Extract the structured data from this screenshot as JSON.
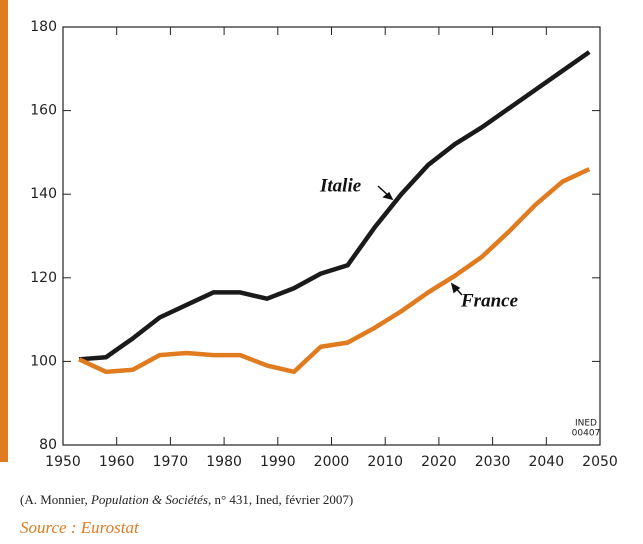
{
  "chart_data": {
    "type": "line",
    "x": [
      1953,
      1958,
      1963,
      1968,
      1973,
      1978,
      1983,
      1988,
      1993,
      1998,
      2003,
      2008,
      2013,
      2018,
      2023,
      2028,
      2033,
      2038,
      2043,
      2048
    ],
    "series": [
      {
        "name": "Italie",
        "color": "#1a1a1a",
        "values": [
          100.5,
          101,
          105.5,
          110.5,
          113.5,
          116.5,
          116.5,
          115,
          117.5,
          121,
          123,
          132,
          140,
          147,
          152,
          156,
          160.5,
          165,
          169.5,
          174
        ]
      },
      {
        "name": "France",
        "color": "#e07b20",
        "values": [
          100.5,
          97.5,
          98,
          101.5,
          102,
          101.5,
          101.5,
          99,
          97.5,
          103.5,
          104.5,
          108,
          112,
          116.5,
          120.5,
          125,
          131,
          137.5,
          143,
          146
        ]
      }
    ],
    "xlim": [
      1950,
      2050
    ],
    "xticks": [
      1950,
      1960,
      1970,
      1980,
      1990,
      2000,
      2010,
      2020,
      2030,
      2040,
      2050
    ],
    "ylim": [
      80,
      180
    ],
    "yticks": [
      80,
      100,
      120,
      140,
      160,
      180
    ],
    "grid": false,
    "watermark": [
      "INED",
      "00407"
    ]
  },
  "footer": {
    "citation": {
      "before": "(A. Monnier, ",
      "italic": "Population & Sociétés",
      "after": ", n° 431, Ined, février 2007)"
    },
    "source": "Source : Eurostat"
  }
}
